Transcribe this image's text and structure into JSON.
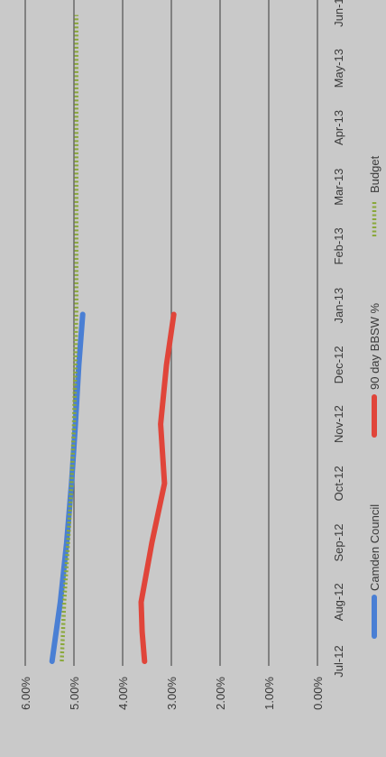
{
  "chart_data": {
    "type": "line",
    "orientation": "rotated-90-clockwise",
    "categories": [
      "Jul-12",
      "Aug-12",
      "Sep-12",
      "Oct-12",
      "Nov-12",
      "Dec-12",
      "Jan-13",
      "Feb-13",
      "Mar-13",
      "Apr-13",
      "May-13",
      "Jun-13"
    ],
    "y_ticks": [
      "0.00%",
      "1.00%",
      "2.00%",
      "3.00%",
      "4.00%",
      "5.00%",
      "6.00%"
    ],
    "ylim": [
      0,
      6
    ],
    "grid": true,
    "legend_position": "bottom",
    "series": [
      {
        "name": "Camden Council",
        "color": "#4a7fd4",
        "style": "solid",
        "x": [
          0,
          1,
          2,
          3,
          4,
          5,
          5.85
        ],
        "values": [
          5.45,
          5.28,
          5.15,
          5.05,
          4.97,
          4.9,
          4.82
        ]
      },
      {
        "name": "90 day BBSW %",
        "color": "#e0453a",
        "style": "solid",
        "x": [
          0,
          0.5,
          1,
          2,
          3,
          4,
          5,
          5.85
        ],
        "values": [
          3.55,
          3.6,
          3.62,
          3.4,
          3.14,
          3.22,
          3.1,
          2.95
        ]
      },
      {
        "name": "Budget",
        "color": "#8aa83a",
        "style": "dotted",
        "x": [
          0,
          1,
          2,
          3,
          4,
          5,
          6,
          7,
          8,
          9,
          10,
          10.9
        ],
        "values": [
          5.25,
          5.2,
          5.12,
          5.05,
          5.0,
          4.97,
          4.95,
          4.95,
          4.95,
          4.95,
          4.95,
          4.95
        ]
      }
    ]
  }
}
